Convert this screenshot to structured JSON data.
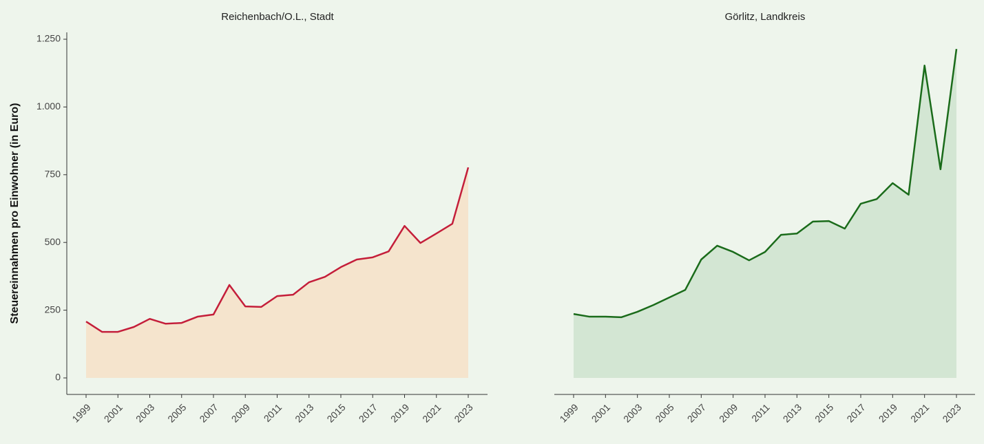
{
  "chart_data": [
    {
      "type": "area",
      "title": "Reichenbach/O.L., Stadt",
      "ylabel": "Steuereinnahmen pro Einwohner (in Euro)",
      "categories": [
        "1999",
        null,
        "2001",
        null,
        "2003",
        null,
        "2005",
        null,
        "2007",
        null,
        "2009",
        null,
        "2011",
        null,
        "2013",
        null,
        "2015",
        null,
        "2017",
        null,
        "2019",
        null,
        "2021",
        null,
        "2023"
      ],
      "series": [
        {
          "color": "#c41e3a",
          "fill": "#f5e4cd",
          "values": [
            208,
            170,
            170,
            188,
            218,
            200,
            203,
            226,
            234,
            343,
            264,
            262,
            302,
            307,
            353,
            373,
            409,
            437,
            445,
            467,
            561,
            498,
            533,
            569,
            777
          ]
        }
      ],
      "ylim": [
        0,
        1250
      ],
      "yticks": [
        0,
        250,
        500,
        750,
        {
          "value": 1000,
          "label": "1.000"
        },
        {
          "value": 1250,
          "label": "1.250"
        }
      ]
    },
    {
      "type": "area",
      "title": "Görlitz, Landkreis",
      "categories": [
        "1999",
        null,
        "2001",
        null,
        "2003",
        null,
        "2005",
        null,
        "2007",
        null,
        "2009",
        null,
        "2011",
        null,
        "2013",
        null,
        "2015",
        null,
        "2017",
        null,
        "2019",
        null,
        "2021",
        null,
        "2023"
      ],
      "series": [
        {
          "color": "#1a6b1a",
          "fill": "#d3e6d3",
          "values": [
            236,
            226,
            226,
            224,
            244,
            269,
            297,
            325,
            437,
            488,
            465,
            434,
            465,
            528,
            533,
            577,
            579,
            551,
            643,
            660,
            719,
            676,
            1153,
            770,
            1214
          ]
        }
      ],
      "ylim": [
        0,
        1250
      ]
    }
  ]
}
